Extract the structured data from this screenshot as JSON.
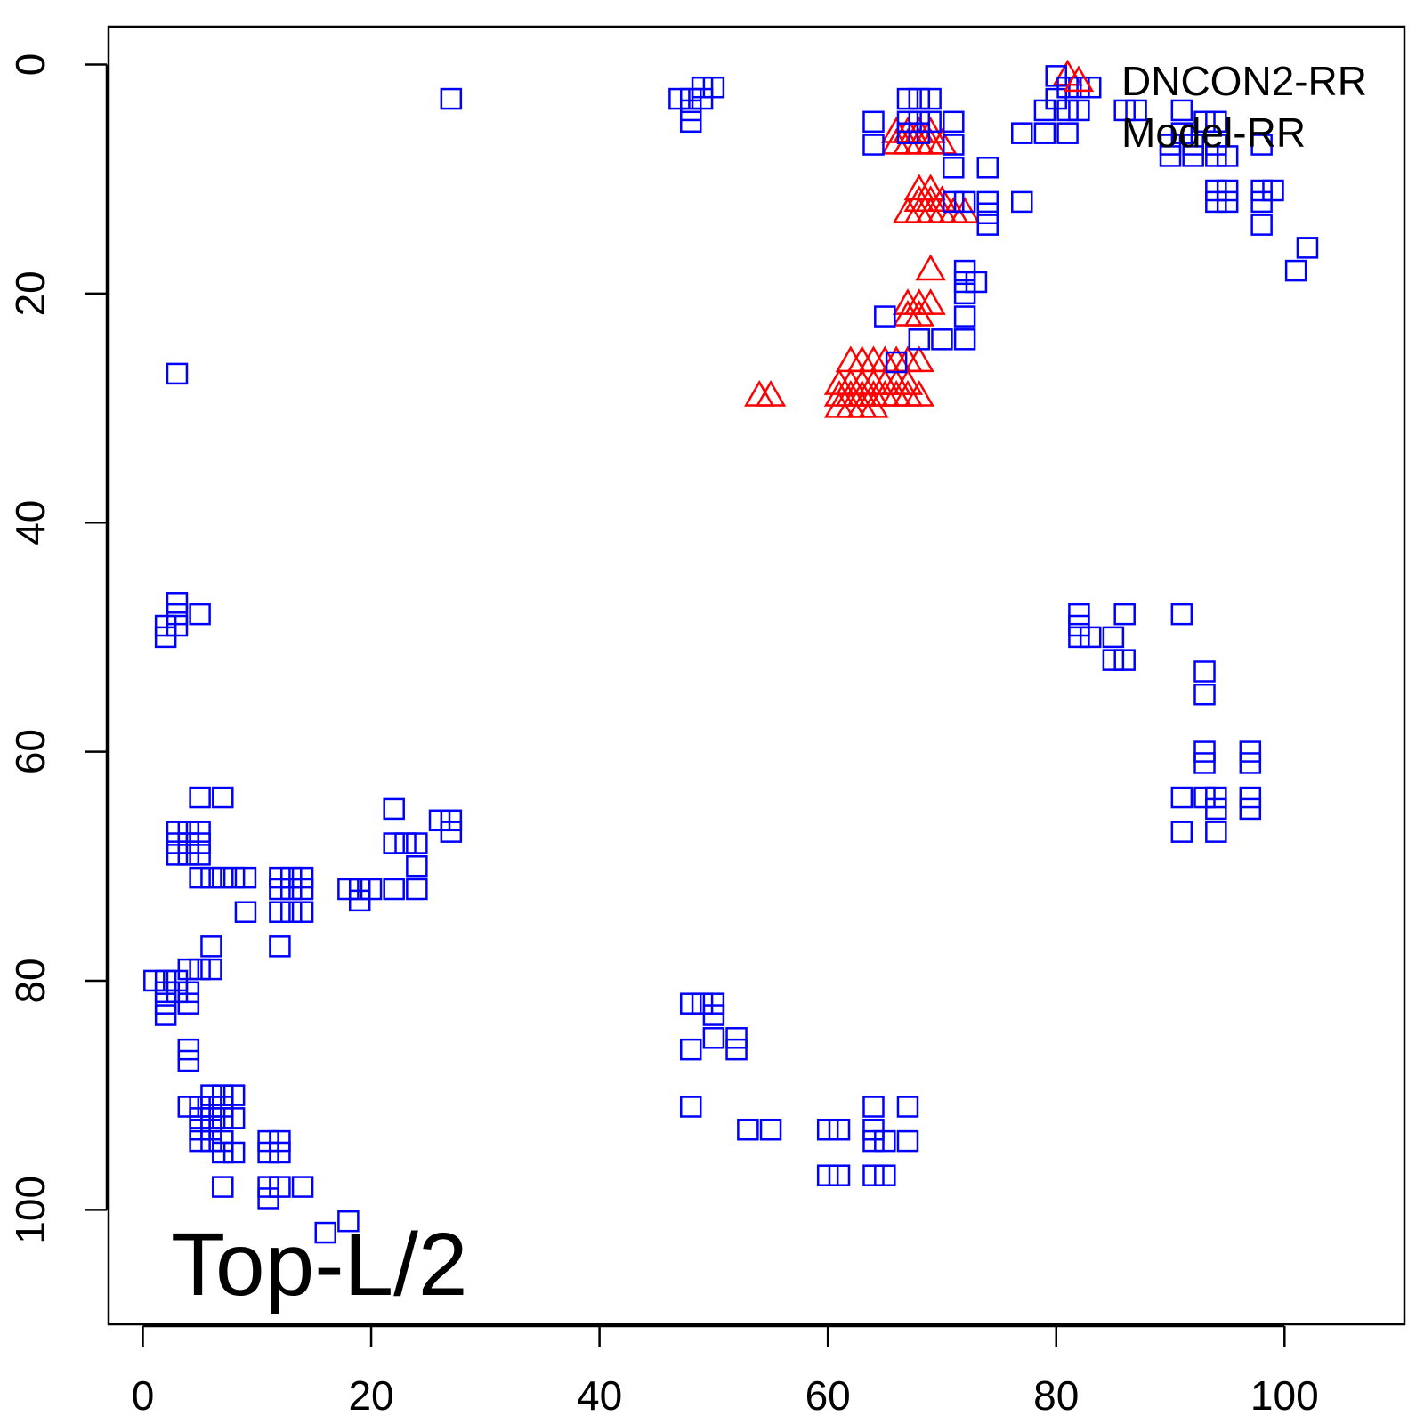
{
  "chart_data": {
    "type": "scatter",
    "title": "",
    "annotation": "Top-L/2",
    "xlabel": "",
    "ylabel": "",
    "xlim": [
      -3,
      110.5
    ],
    "ylim": [
      -3.3,
      110
    ],
    "y_reversed": true,
    "x_ticks": [
      0,
      20,
      40,
      60,
      80,
      100
    ],
    "y_ticks": [
      0,
      20,
      40,
      60,
      80,
      100
    ],
    "x_tick_labels": [
      "0",
      "20",
      "40",
      "60",
      "80",
      "100"
    ],
    "y_tick_labels": [
      "0",
      "20",
      "40",
      "60",
      "80",
      "100"
    ],
    "grid": false,
    "legend_position": "top-right",
    "series": [
      {
        "name": "DNCON2-RR",
        "marker": "triangle",
        "color": "#ff0000",
        "points": [
          [
            81,
            1
          ],
          [
            66,
            6
          ],
          [
            67,
            6
          ],
          [
            68,
            6
          ],
          [
            69,
            6
          ],
          [
            66,
            7
          ],
          [
            67,
            7
          ],
          [
            68,
            7
          ],
          [
            69,
            7
          ],
          [
            70,
            7
          ],
          [
            68,
            11
          ],
          [
            69,
            11
          ],
          [
            68,
            12
          ],
          [
            69,
            12
          ],
          [
            70,
            12
          ],
          [
            67,
            13
          ],
          [
            68,
            13
          ],
          [
            69,
            13
          ],
          [
            70,
            13
          ],
          [
            71,
            13
          ],
          [
            72,
            13
          ],
          [
            69,
            18
          ],
          [
            67,
            21
          ],
          [
            68,
            21
          ],
          [
            69,
            21
          ],
          [
            67,
            22
          ],
          [
            68,
            22
          ],
          [
            62,
            26
          ],
          [
            63,
            26
          ],
          [
            64,
            26
          ],
          [
            65,
            26
          ],
          [
            66,
            26
          ],
          [
            67,
            26
          ],
          [
            68,
            26
          ],
          [
            61,
            28
          ],
          [
            62,
            28
          ],
          [
            63,
            28
          ],
          [
            64,
            28
          ],
          [
            65,
            28
          ],
          [
            66,
            28
          ],
          [
            67,
            28
          ],
          [
            54,
            29
          ],
          [
            55,
            29
          ],
          [
            61,
            29
          ],
          [
            62,
            29
          ],
          [
            63,
            29
          ],
          [
            64,
            29
          ],
          [
            65,
            29
          ],
          [
            66,
            29
          ],
          [
            67,
            29
          ],
          [
            68,
            29
          ],
          [
            61,
            30
          ],
          [
            62,
            30
          ],
          [
            63,
            30
          ],
          [
            64,
            30
          ]
        ]
      },
      {
        "name": "Model-RR",
        "marker": "square",
        "color": "#0000ff",
        "points": [
          [
            27,
            3
          ],
          [
            47,
            3
          ],
          [
            48,
            3
          ],
          [
            49,
            3
          ],
          [
            50,
            2
          ],
          [
            48,
            4
          ],
          [
            48,
            5
          ],
          [
            49,
            2
          ],
          [
            64,
            5
          ],
          [
            64,
            7
          ],
          [
            67,
            3
          ],
          [
            68,
            3
          ],
          [
            69,
            3
          ],
          [
            67,
            5
          ],
          [
            68,
            5
          ],
          [
            69,
            5
          ],
          [
            67,
            6
          ],
          [
            68,
            6
          ],
          [
            71,
            5
          ],
          [
            71,
            7
          ],
          [
            71,
            9
          ],
          [
            71,
            12
          ],
          [
            72,
            12
          ],
          [
            74,
            9
          ],
          [
            74,
            12
          ],
          [
            74,
            13
          ],
          [
            74,
            14
          ],
          [
            72,
            18
          ],
          [
            72,
            19
          ],
          [
            73,
            19
          ],
          [
            72,
            20
          ],
          [
            72,
            22
          ],
          [
            72,
            24
          ],
          [
            70,
            24
          ],
          [
            68,
            24
          ],
          [
            65,
            22
          ],
          [
            66,
            26
          ],
          [
            77,
            6
          ],
          [
            77,
            12
          ],
          [
            79,
            4
          ],
          [
            79,
            6
          ],
          [
            80,
            1
          ],
          [
            80,
            3
          ],
          [
            81,
            2
          ],
          [
            81,
            4
          ],
          [
            82,
            2
          ],
          [
            82,
            4
          ],
          [
            83,
            2
          ],
          [
            81,
            6
          ],
          [
            86,
            4
          ],
          [
            87,
            4
          ],
          [
            90,
            7
          ],
          [
            90,
            8
          ],
          [
            91,
            4
          ],
          [
            91,
            6
          ],
          [
            92,
            7
          ],
          [
            92,
            8
          ],
          [
            93,
            5
          ],
          [
            94,
            5
          ],
          [
            94,
            7
          ],
          [
            94,
            8
          ],
          [
            95,
            8
          ],
          [
            94,
            11
          ],
          [
            95,
            11
          ],
          [
            94,
            12
          ],
          [
            95,
            12
          ],
          [
            98,
            7
          ],
          [
            98,
            11
          ],
          [
            99,
            11
          ],
          [
            98,
            12
          ],
          [
            98,
            14
          ],
          [
            102,
            16
          ],
          [
            101,
            18
          ],
          [
            3,
            27
          ],
          [
            2,
            49
          ],
          [
            2,
            50
          ],
          [
            3,
            47
          ],
          [
            3,
            48
          ],
          [
            3,
            49
          ],
          [
            5,
            48
          ],
          [
            82,
            48
          ],
          [
            82,
            49
          ],
          [
            82,
            50
          ],
          [
            83,
            50
          ],
          [
            85,
            50
          ],
          [
            85,
            52
          ],
          [
            86,
            52
          ],
          [
            86,
            48
          ],
          [
            91,
            48
          ],
          [
            93,
            53
          ],
          [
            93,
            55
          ],
          [
            93,
            60
          ],
          [
            93,
            61
          ],
          [
            97,
            60
          ],
          [
            97,
            61
          ],
          [
            91,
            64
          ],
          [
            93,
            64
          ],
          [
            94,
            64
          ],
          [
            94,
            65
          ],
          [
            94,
            67
          ],
          [
            91,
            67
          ],
          [
            97,
            64
          ],
          [
            97,
            65
          ],
          [
            5,
            64
          ],
          [
            7,
            64
          ],
          [
            3,
            67
          ],
          [
            4,
            67
          ],
          [
            5,
            67
          ],
          [
            3,
            68
          ],
          [
            4,
            68
          ],
          [
            5,
            68
          ],
          [
            3,
            69
          ],
          [
            4,
            69
          ],
          [
            5,
            69
          ],
          [
            5,
            71
          ],
          [
            6,
            71
          ],
          [
            7,
            71
          ],
          [
            8,
            71
          ],
          [
            9,
            71
          ],
          [
            9,
            74
          ],
          [
            12,
            71
          ],
          [
            13,
            71
          ],
          [
            14,
            71
          ],
          [
            12,
            72
          ],
          [
            13,
            72
          ],
          [
            14,
            72
          ],
          [
            12,
            74
          ],
          [
            13,
            74
          ],
          [
            14,
            74
          ],
          [
            12,
            77
          ],
          [
            18,
            72
          ],
          [
            19,
            72
          ],
          [
            20,
            72
          ],
          [
            19,
            73
          ],
          [
            22,
            72
          ],
          [
            24,
            72
          ],
          [
            22,
            65
          ],
          [
            22,
            68
          ],
          [
            23,
            68
          ],
          [
            24,
            68
          ],
          [
            24,
            70
          ],
          [
            26,
            66
          ],
          [
            27,
            66
          ],
          [
            27,
            67
          ],
          [
            1,
            80
          ],
          [
            2,
            80
          ],
          [
            3,
            80
          ],
          [
            2,
            81
          ],
          [
            3,
            81
          ],
          [
            2,
            82
          ],
          [
            2,
            83
          ],
          [
            4,
            79
          ],
          [
            5,
            79
          ],
          [
            4,
            81
          ],
          [
            4,
            82
          ],
          [
            6,
            77
          ],
          [
            6,
            79
          ],
          [
            4,
            86
          ],
          [
            4,
            87
          ],
          [
            4,
            91
          ],
          [
            5,
            91
          ],
          [
            6,
            90
          ],
          [
            7,
            90
          ],
          [
            8,
            90
          ],
          [
            6,
            91
          ],
          [
            7,
            91
          ],
          [
            5,
            92
          ],
          [
            6,
            92
          ],
          [
            7,
            92
          ],
          [
            8,
            92
          ],
          [
            5,
            93
          ],
          [
            6,
            93
          ],
          [
            5,
            94
          ],
          [
            6,
            94
          ],
          [
            7,
            94
          ],
          [
            7,
            95
          ],
          [
            8,
            95
          ],
          [
            7,
            98
          ],
          [
            11,
            94
          ],
          [
            12,
            94
          ],
          [
            11,
            95
          ],
          [
            12,
            95
          ],
          [
            11,
            98
          ],
          [
            12,
            98
          ],
          [
            14,
            98
          ],
          [
            11,
            99
          ],
          [
            16,
            102
          ],
          [
            18,
            101
          ],
          [
            48,
            82
          ],
          [
            49,
            82
          ],
          [
            50,
            82
          ],
          [
            50,
            83
          ],
          [
            50,
            85
          ],
          [
            52,
            85
          ],
          [
            52,
            86
          ],
          [
            48,
            86
          ],
          [
            48,
            91
          ],
          [
            53,
            93
          ],
          [
            55,
            93
          ],
          [
            60,
            93
          ],
          [
            61,
            93
          ],
          [
            64,
            91
          ],
          [
            67,
            91
          ],
          [
            64,
            93
          ],
          [
            64,
            94
          ],
          [
            65,
            94
          ],
          [
            67,
            94
          ],
          [
            60,
            97
          ],
          [
            61,
            97
          ],
          [
            64,
            97
          ],
          [
            65,
            97
          ]
        ]
      }
    ]
  }
}
